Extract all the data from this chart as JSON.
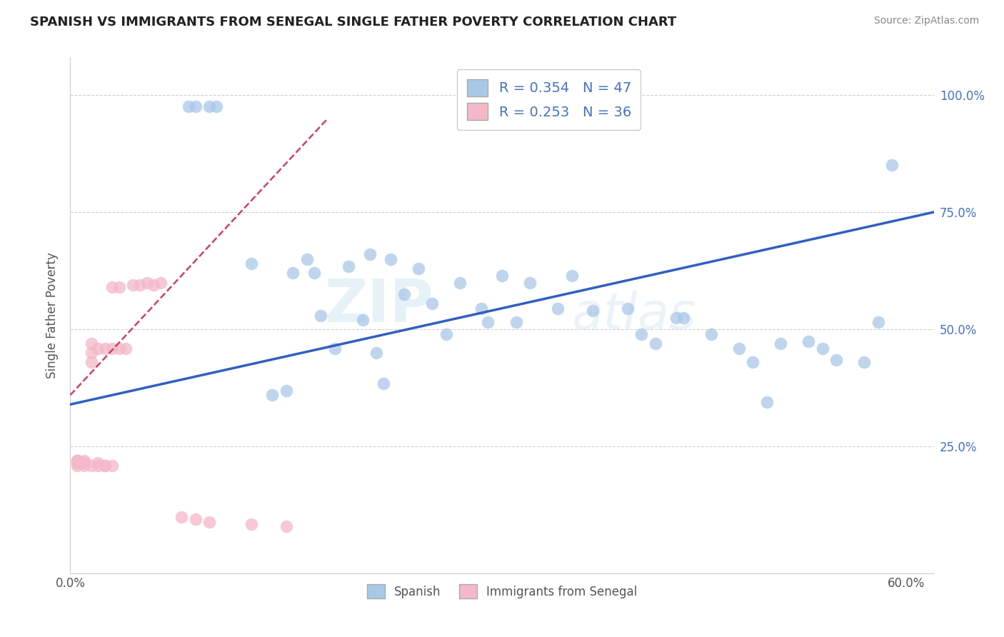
{
  "title": "SPANISH VS IMMIGRANTS FROM SENEGAL SINGLE FATHER POVERTY CORRELATION CHART",
  "source": "Source: ZipAtlas.com",
  "ylabel": "Single Father Poverty",
  "xlim": [
    0.0,
    0.62
  ],
  "ylim": [
    -0.02,
    1.08
  ],
  "R_spanish": 0.354,
  "N_spanish": 47,
  "R_senegal": 0.253,
  "N_senegal": 36,
  "spanish_color": "#a8c8e8",
  "senegal_color": "#f4b8c8",
  "trendline_spanish_color": "#3060c0",
  "trendline_senegal_color": "#d04060",
  "watermark_zip": "ZIP",
  "watermark_atlas": "atlas",
  "spanish_x": [
    0.085,
    0.09,
    0.1,
    0.105,
    0.13,
    0.145,
    0.155,
    0.16,
    0.17,
    0.175,
    0.18,
    0.19,
    0.2,
    0.21,
    0.215,
    0.22,
    0.225,
    0.23,
    0.24,
    0.25,
    0.26,
    0.27,
    0.28,
    0.295,
    0.3,
    0.31,
    0.32,
    0.33,
    0.35,
    0.36,
    0.375,
    0.4,
    0.41,
    0.42,
    0.435,
    0.44,
    0.46,
    0.48,
    0.49,
    0.5,
    0.51,
    0.53,
    0.54,
    0.55,
    0.57,
    0.58,
    0.59
  ],
  "spanish_y": [
    0.975,
    0.975,
    0.975,
    0.975,
    0.64,
    0.36,
    0.37,
    0.62,
    0.65,
    0.62,
    0.53,
    0.46,
    0.635,
    0.52,
    0.66,
    0.45,
    0.385,
    0.65,
    0.575,
    0.63,
    0.555,
    0.49,
    0.6,
    0.545,
    0.515,
    0.615,
    0.515,
    0.6,
    0.545,
    0.615,
    0.54,
    0.545,
    0.49,
    0.47,
    0.525,
    0.525,
    0.49,
    0.46,
    0.43,
    0.345,
    0.47,
    0.475,
    0.46,
    0.435,
    0.43,
    0.515,
    0.85
  ],
  "senegal_x": [
    0.005,
    0.005,
    0.005,
    0.005,
    0.005,
    0.005,
    0.01,
    0.01,
    0.01,
    0.01,
    0.015,
    0.015,
    0.015,
    0.015,
    0.02,
    0.02,
    0.02,
    0.025,
    0.025,
    0.025,
    0.03,
    0.03,
    0.03,
    0.035,
    0.035,
    0.04,
    0.045,
    0.05,
    0.055,
    0.06,
    0.065,
    0.08,
    0.09,
    0.1,
    0.13,
    0.155
  ],
  "senegal_y": [
    0.21,
    0.215,
    0.22,
    0.215,
    0.22,
    0.22,
    0.21,
    0.215,
    0.22,
    0.215,
    0.21,
    0.43,
    0.45,
    0.47,
    0.21,
    0.215,
    0.46,
    0.21,
    0.21,
    0.46,
    0.21,
    0.46,
    0.59,
    0.46,
    0.59,
    0.46,
    0.595,
    0.595,
    0.6,
    0.595,
    0.6,
    0.1,
    0.095,
    0.09,
    0.085,
    0.08
  ],
  "trendline_spanish_x0": 0.0,
  "trendline_spanish_x1": 0.62,
  "trendline_spanish_y0": 0.34,
  "trendline_spanish_y1": 0.75,
  "trendline_senegal_x0": 0.0,
  "trendline_senegal_x1": 0.185,
  "trendline_senegal_y0": 0.36,
  "trendline_senegal_y1": 0.95
}
